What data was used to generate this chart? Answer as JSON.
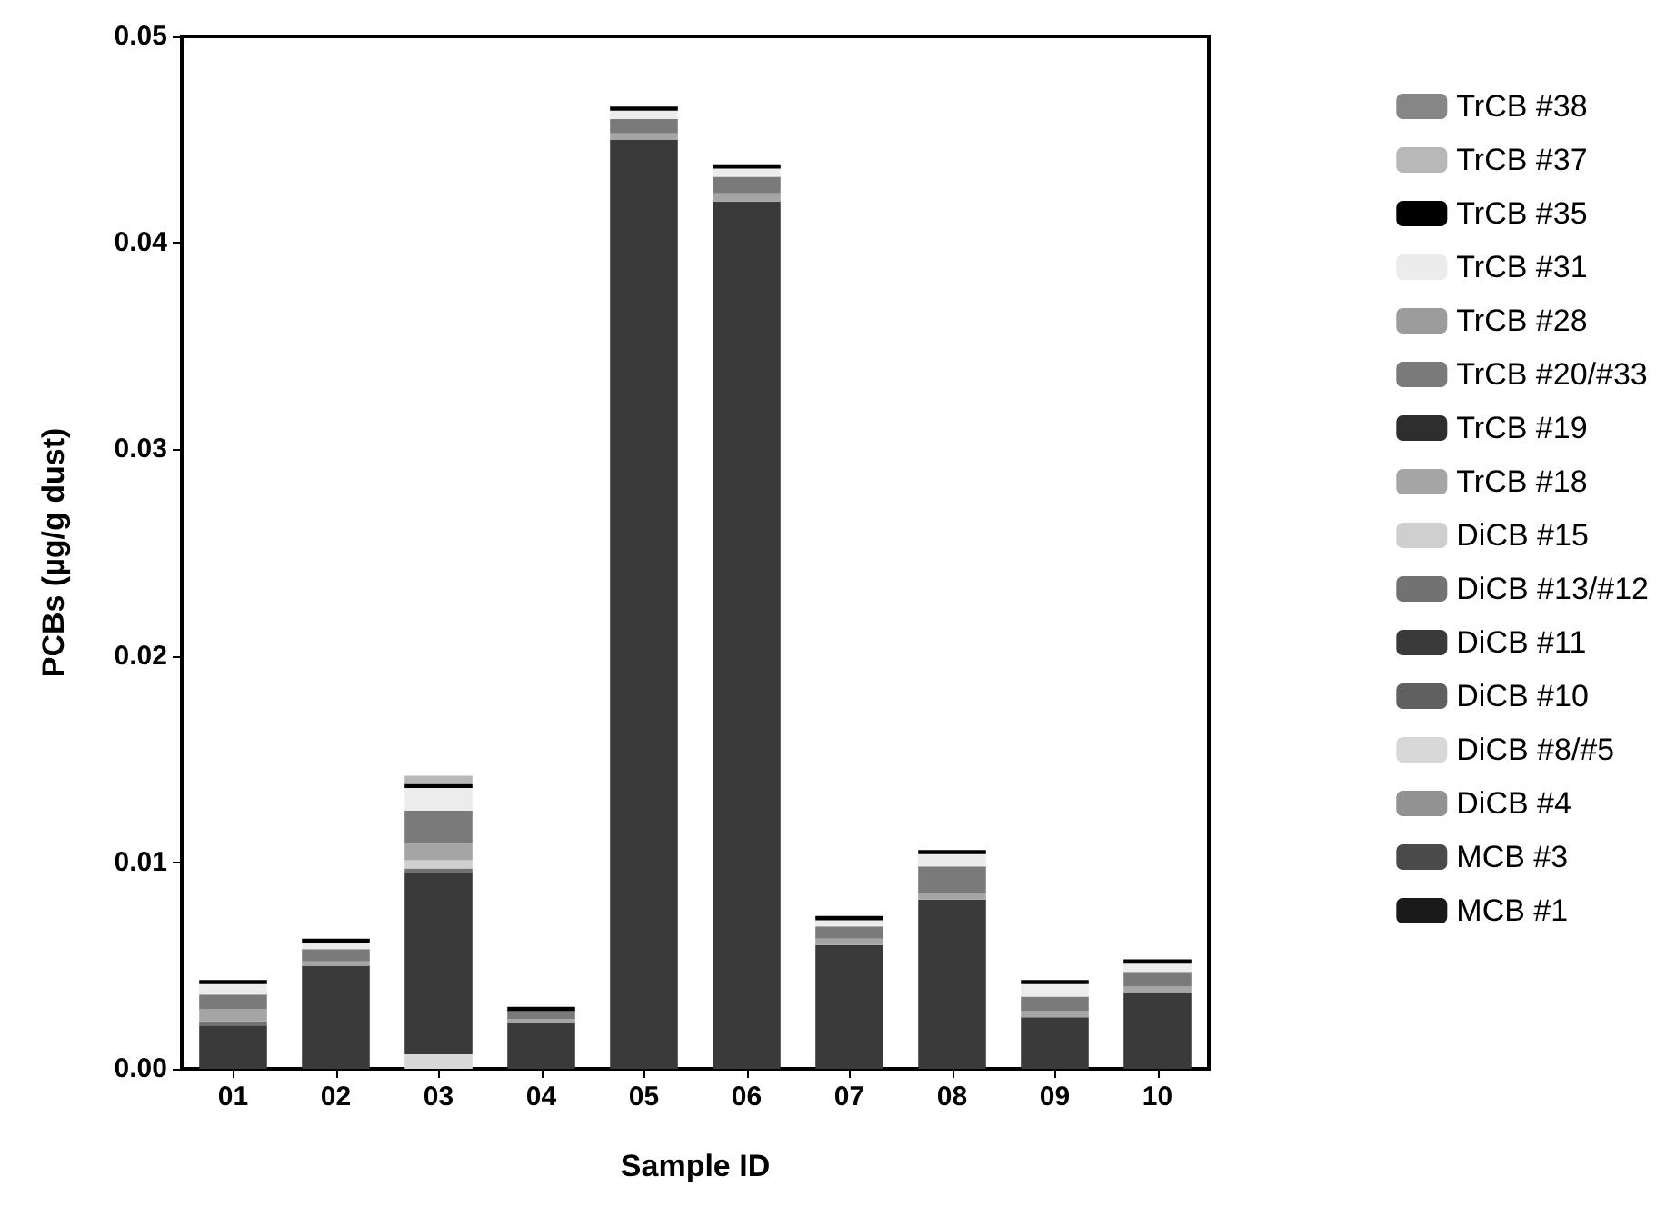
{
  "chart_data": {
    "type": "bar",
    "stacked": true,
    "xlabel": "Sample ID",
    "ylabel": "PCBs (µg/g dust)",
    "categories": [
      "01",
      "02",
      "03",
      "04",
      "05",
      "06",
      "07",
      "08",
      "09",
      "10"
    ],
    "ylim": [
      0,
      0.05
    ],
    "yticks": [
      {
        "value": 0,
        "label": "0.00"
      },
      {
        "value": 0.01,
        "label": "0.01"
      },
      {
        "value": 0.02,
        "label": "0.02"
      },
      {
        "value": 0.03,
        "label": "0.03"
      },
      {
        "value": 0.04,
        "label": "0.04"
      },
      {
        "value": 0.05,
        "label": "0.05"
      }
    ],
    "grid": false,
    "legend": "right",
    "series": [
      {
        "name": "MCB #1",
        "color": "#1a1a1a",
        "values": [
          0,
          0,
          0,
          0,
          0,
          0,
          0,
          0,
          0,
          0
        ]
      },
      {
        "name": "MCB #3",
        "color": "#4a4a4a",
        "values": [
          0,
          0,
          0,
          0,
          0,
          0,
          0,
          0,
          0,
          0
        ]
      },
      {
        "name": "DiCB #4",
        "color": "#929292",
        "values": [
          0,
          0,
          0,
          0,
          0,
          0,
          0,
          0,
          0,
          0
        ]
      },
      {
        "name": "DiCB #8/#5",
        "color": "#d8d8d8",
        "values": [
          0,
          0,
          0.0007,
          0,
          0,
          0,
          0,
          0,
          0,
          0
        ]
      },
      {
        "name": "DiCB #10",
        "color": "#606060",
        "values": [
          0,
          0,
          0,
          0,
          0,
          0,
          0,
          0,
          0,
          0
        ]
      },
      {
        "name": "DiCB #11",
        "color": "#3a3a3a",
        "values": [
          0.0021,
          0.005,
          0.0088,
          0.0022,
          0.045,
          0.042,
          0.006,
          0.0082,
          0.0025,
          0.0037
        ]
      },
      {
        "name": "DiCB #13/#12",
        "color": "#727272",
        "values": [
          0.0002,
          0,
          0.0002,
          0,
          0,
          0,
          0,
          0,
          0,
          0
        ]
      },
      {
        "name": "DiCB #15",
        "color": "#cfcfcf",
        "values": [
          0,
          0,
          0.0004,
          0,
          0,
          0,
          0,
          0,
          0,
          0
        ]
      },
      {
        "name": "TrCB #18",
        "color": "#a5a5a5",
        "values": [
          0.0006,
          0.0002,
          0.0008,
          0.0002,
          0.0003,
          0.0004,
          0.0003,
          0.0003,
          0.0003,
          0.0003
        ]
      },
      {
        "name": "TrCB #19",
        "color": "#2e2e2e",
        "values": [
          0,
          0,
          0,
          0,
          0,
          0,
          0,
          0,
          0,
          0
        ]
      },
      {
        "name": "TrCB #20/#33",
        "color": "#7a7a7a",
        "values": [
          0.0007,
          0.0006,
          0.0016,
          0.0004,
          0.0007,
          0.0008,
          0.0006,
          0.0013,
          0.0007,
          0.0007
        ]
      },
      {
        "name": "TrCB #28",
        "color": "#9c9c9c",
        "values": [
          0,
          0,
          0,
          0,
          0,
          0,
          0,
          0,
          0,
          0
        ]
      },
      {
        "name": "TrCB #31",
        "color": "#ececec",
        "values": [
          0.0005,
          0.0003,
          0.0011,
          0,
          0.0004,
          0.0004,
          0.0003,
          0.0006,
          0.0006,
          0.0004
        ]
      },
      {
        "name": "TrCB #35",
        "color": "#000000",
        "values": [
          0.0002,
          0.0002,
          0.0002,
          0.0002,
          0.0002,
          0.0002,
          0.0002,
          0.0002,
          0.0002,
          0.0002
        ]
      },
      {
        "name": "TrCB #37",
        "color": "#b8b8b8",
        "values": [
          0,
          0,
          0.0004,
          0,
          0,
          0,
          0,
          0,
          0,
          0
        ]
      },
      {
        "name": "TrCB #38",
        "color": "#868686",
        "values": [
          0,
          0,
          0,
          0,
          0,
          0,
          0,
          0,
          0,
          0
        ]
      }
    ]
  }
}
